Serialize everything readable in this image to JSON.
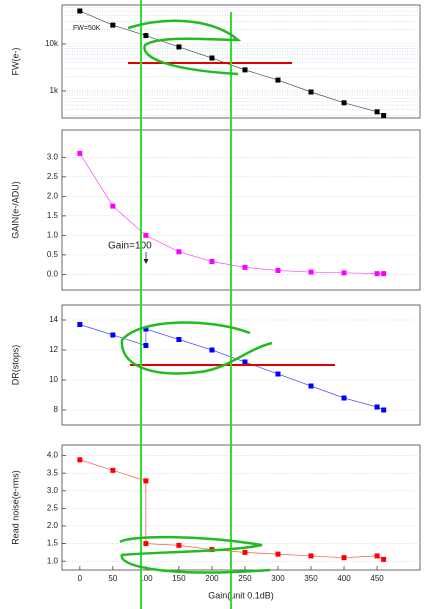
{
  "chart_data": [
    {
      "type": "line",
      "ylabel": "FW(e-)",
      "annotation": "FW=50K",
      "yscale": "log",
      "grid": true,
      "xlim": [
        -27,
        515
      ],
      "ylim": [
        266,
        67000
      ],
      "yticks": [
        {
          "value": 1000,
          "label": "1k"
        },
        {
          "value": 10000,
          "label": "10k"
        }
      ],
      "series": [
        {
          "color": "#000000",
          "x": [
            0,
            50,
            100,
            150,
            200,
            250,
            300,
            350,
            400,
            450,
            460
          ],
          "values": [
            50000,
            25000,
            15000,
            8600,
            5000,
            2800,
            1700,
            950,
            560,
            360,
            300
          ]
        }
      ]
    },
    {
      "type": "line",
      "ylabel": "GAIN(e-/ADU)",
      "annotation": "Gain=100",
      "grid": true,
      "xlim": [
        -27,
        515
      ],
      "ylim": [
        -0.4,
        3.7
      ],
      "yticks": [
        {
          "value": 0,
          "label": "0.0"
        },
        0.5,
        {
          "value": 1,
          "label": "1.0"
        },
        1.5,
        {
          "value": 2,
          "label": "2.0"
        },
        2.5,
        {
          "value": 3,
          "label": "3.0"
        }
      ],
      "series": [
        {
          "color": "#ff00ff",
          "x": [
            0,
            50,
            100,
            150,
            200,
            250,
            300,
            350,
            400,
            450,
            460
          ],
          "values": [
            3.1,
            1.75,
            1.0,
            0.58,
            0.33,
            0.18,
            0.1,
            0.06,
            0.04,
            0.02,
            0.02
          ]
        }
      ]
    },
    {
      "type": "line",
      "ylabel": "DR(stops)",
      "grid": true,
      "xlim": [
        -27,
        515
      ],
      "ylim": [
        7,
        15
      ],
      "yticks": [
        8,
        10,
        12,
        14
      ],
      "series": [
        {
          "color": "#0000ff",
          "x": [
            0,
            50,
            100,
            100,
            150,
            200,
            250,
            300,
            350,
            400,
            450,
            460
          ],
          "values": [
            13.7,
            13.0,
            12.3,
            13.4,
            12.7,
            12.0,
            11.2,
            10.4,
            9.6,
            8.8,
            8.2,
            8.0
          ]
        }
      ]
    },
    {
      "type": "line",
      "ylabel": "Read noise(e-rms)",
      "xlabel": "Gain(unit 0.1dB)",
      "grid": true,
      "xlim": [
        -27,
        515
      ],
      "ylim": [
        0.75,
        4.3
      ],
      "xticks": [
        0,
        50,
        100,
        150,
        200,
        250,
        300,
        350,
        400,
        450
      ],
      "yticks": [
        {
          "value": 1,
          "label": "1.0"
        },
        1.5,
        {
          "value": 2,
          "label": "2.0"
        },
        2.5,
        {
          "value": 3,
          "label": "3.0"
        },
        3.5,
        {
          "value": 4,
          "label": "4.0"
        }
      ],
      "series": [
        {
          "color": "#ff0000",
          "x": [
            0,
            50,
            100,
            100,
            150,
            200,
            250,
            300,
            350,
            400,
            450,
            460
          ],
          "values": [
            3.88,
            3.58,
            3.28,
            1.5,
            1.45,
            1.33,
            1.25,
            1.2,
            1.15,
            1.1,
            1.15,
            1.05
          ]
        }
      ]
    }
  ]
}
